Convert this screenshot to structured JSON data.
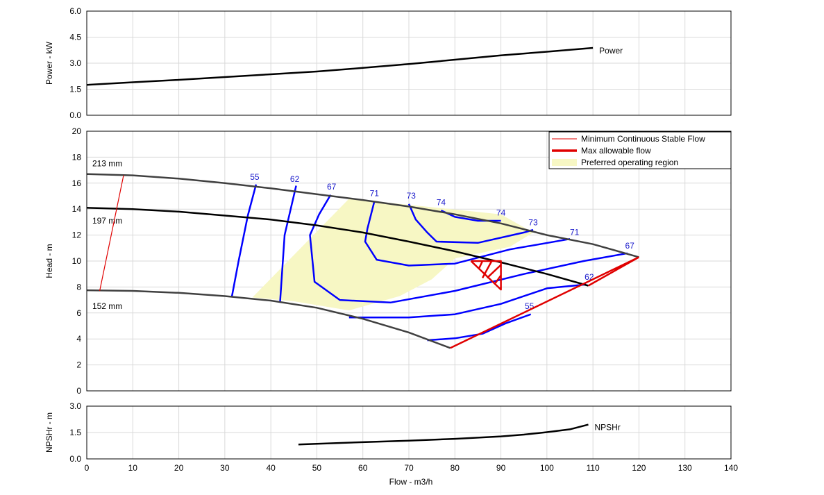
{
  "chart_data": [
    {
      "type": "line",
      "panel": "power",
      "ylabel": "Power - kW",
      "xlim": [
        0,
        140
      ],
      "ylim": [
        0,
        6
      ],
      "yticks": [
        "0.0",
        "1.5",
        "3.0",
        "4.5",
        "6.0"
      ],
      "grid": true,
      "series": [
        {
          "name": "Power",
          "color": "#000000",
          "x": [
            0,
            10,
            20,
            30,
            40,
            50,
            60,
            70,
            80,
            90,
            100,
            110
          ],
          "y": [
            1.75,
            1.9,
            2.04,
            2.2,
            2.36,
            2.52,
            2.73,
            2.95,
            3.2,
            3.45,
            3.66,
            3.88
          ]
        }
      ]
    },
    {
      "type": "line",
      "panel": "head",
      "ylabel": "Head - m",
      "xlim": [
        0,
        140
      ],
      "ylim": [
        0,
        20
      ],
      "yticks": [
        "0",
        "2",
        "4",
        "6",
        "8",
        "10",
        "12",
        "14",
        "16",
        "18",
        "20"
      ],
      "grid": true,
      "legend_position": "top-right",
      "legend": [
        {
          "label": "Minimum Continuous Stable Flow",
          "style": "thin-red-line",
          "color": "#e00000"
        },
        {
          "label": "Max allowable flow",
          "style": "thick-red-line",
          "color": "#e00000"
        },
        {
          "label": "Preferred operating region",
          "style": "fill",
          "color": "#f7f7c4"
        }
      ],
      "impeller_curves": [
        {
          "name": "213 mm",
          "color": "#404040",
          "x": [
            0,
            10,
            20,
            30,
            40,
            50,
            60,
            70,
            80,
            90,
            100,
            110,
            120
          ],
          "y": [
            16.7,
            16.6,
            16.35,
            16.0,
            15.6,
            15.15,
            14.7,
            14.2,
            13.6,
            12.9,
            12.0,
            11.3,
            10.3
          ]
        },
        {
          "name": "197 mm",
          "color": "#000000",
          "x": [
            0,
            10,
            20,
            30,
            40,
            50,
            60,
            70,
            80,
            90,
            100,
            109
          ],
          "y": [
            14.1,
            14.0,
            13.8,
            13.5,
            13.2,
            12.75,
            12.2,
            11.5,
            10.75,
            9.9,
            9.0,
            8.1
          ]
        },
        {
          "name": "152 mm",
          "color": "#404040",
          "x": [
            0,
            10,
            20,
            30,
            40,
            50,
            60,
            70,
            79
          ],
          "y": [
            7.75,
            7.7,
            7.55,
            7.3,
            6.95,
            6.4,
            5.55,
            4.5,
            3.3
          ]
        }
      ],
      "min_stable_flow": {
        "color": "#e00000",
        "x": [
          8,
          2.8
        ],
        "y": [
          16.6,
          7.7
        ]
      },
      "max_allowable_flow": {
        "color": "#e00000",
        "x": [
          79,
          120,
          109
        ],
        "y": [
          3.3,
          10.3,
          8.1
        ]
      },
      "bep_marker": {
        "color": "#e00000",
        "x": [
          83.5,
          90,
          90,
          83.5
        ],
        "y": [
          10.0,
          10.0,
          7.8,
          10.0
        ]
      },
      "preferred_region": {
        "color": "#f7f7c4",
        "x": [
          36,
          57,
          90,
          97,
          92,
          80,
          75,
          68,
          57,
          45
        ],
        "y": [
          7.2,
          14.8,
          13.6,
          12.2,
          11.1,
          10.2,
          8.6,
          7.3,
          6.2,
          6.9
        ]
      },
      "efficiency_contours": [
        {
          "label": "55",
          "color": "#0000ff",
          "segments": [
            {
              "x": [
                31.5,
                33,
                35,
                36.8
              ],
              "y": [
                7.2,
                10.0,
                13.5,
                15.9
              ]
            },
            {
              "x": [
                74,
                80,
                86,
                91,
                96.5
              ],
              "y": [
                3.9,
                4.05,
                4.4,
                5.2,
                5.9
              ]
            }
          ],
          "label_x": [
            36.5,
            96.2
          ],
          "label_y": [
            16.25,
            6.3
          ]
        },
        {
          "label": "62",
          "color": "#0000ff",
          "segments": [
            {
              "x": [
                42,
                43,
                45.5
              ],
              "y": [
                6.8,
                12.0,
                15.8
              ]
            },
            {
              "x": [
                57,
                70,
                80,
                90,
                100,
                108.5
              ],
              "y": [
                5.65,
                5.65,
                5.9,
                6.7,
                7.9,
                8.2
              ]
            }
          ],
          "label_x": [
            45.2,
            109.2
          ],
          "label_y": [
            16.1,
            8.55
          ]
        },
        {
          "label": "67",
          "color": "#0000ff",
          "segments": [
            {
              "x": [
                53,
                50.5,
                48.5,
                49.5,
                55,
                66,
                80,
                95,
                108,
                117.5
              ],
              "y": [
                15.1,
                13.6,
                12.0,
                8.4,
                7.0,
                6.8,
                7.7,
                9.0,
                10.0,
                10.6
              ]
            }
          ],
          "label_x": [
            53.2,
            118
          ],
          "label_y": [
            15.5,
            10.95
          ]
        },
        {
          "label": "71",
          "color": "#0000ff",
          "segments": [
            {
              "x": [
                62.5,
                61,
                60.5,
                63,
                70,
                80,
                92,
                105
              ],
              "y": [
                14.6,
                12.5,
                11.5,
                10.1,
                9.65,
                9.8,
                10.9,
                11.7
              ]
            }
          ],
          "label_x": [
            62.5,
            106
          ],
          "label_y": [
            15.0,
            12.0
          ]
        },
        {
          "label": "73",
          "color": "#0000ff",
          "segments": [
            {
              "x": [
                70,
                71.5,
                74,
                76,
                85,
                95,
                97
              ],
              "y": [
                14.4,
                13.2,
                12.2,
                11.5,
                11.4,
                12.2,
                12.4
              ]
            }
          ],
          "label_x": [
            70.5,
            97
          ],
          "label_y": [
            14.8,
            12.75
          ]
        },
        {
          "label": "74",
          "color": "#0000ff",
          "segments": [
            {
              "x": [
                77,
                80,
                85,
                90
              ],
              "y": [
                13.9,
                13.4,
                13.1,
                13.1
              ]
            }
          ],
          "label_x": [
            77,
            90
          ],
          "label_y": [
            14.3,
            13.5
          ]
        }
      ]
    },
    {
      "type": "line",
      "panel": "npshr",
      "ylabel": "NPSHr - m",
      "xlabel": "Flow - m3/h",
      "xlim": [
        0,
        140
      ],
      "ylim": [
        0,
        3
      ],
      "yticks": [
        "0.0",
        "1.5",
        "3.0"
      ],
      "xticks": [
        "0",
        "10",
        "20",
        "30",
        "40",
        "50",
        "60",
        "70",
        "80",
        "90",
        "100",
        "110",
        "120",
        "130",
        "140"
      ],
      "grid": true,
      "series": [
        {
          "name": "NPSHr",
          "color": "#000000",
          "x": [
            46,
            50,
            60,
            70,
            80,
            90,
            95,
            100,
            105,
            109
          ],
          "y": [
            0.82,
            0.86,
            0.95,
            1.04,
            1.14,
            1.28,
            1.38,
            1.52,
            1.68,
            1.95
          ]
        }
      ]
    }
  ]
}
